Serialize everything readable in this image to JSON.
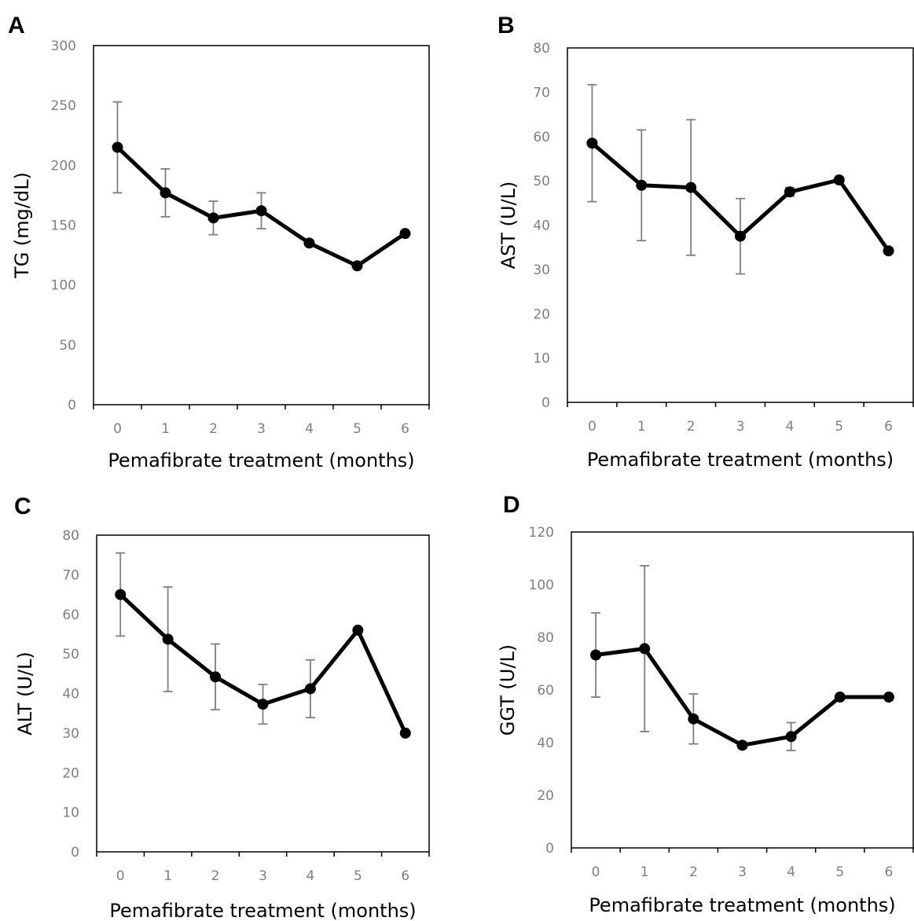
{
  "chart_data": [
    {
      "panel": "A",
      "type": "line",
      "xlabel": "Pemafibrate treatment (months)",
      "ylabel": "TG (mg/dL)",
      "ylim": [
        0,
        300
      ],
      "yticks": [
        "0",
        "50",
        "100",
        "150",
        "200",
        "250",
        "300"
      ],
      "categories": [
        "0",
        "1",
        "2",
        "3",
        "4",
        "5",
        "6"
      ],
      "values": [
        215,
        177,
        156,
        162,
        135,
        116,
        143
      ],
      "error": [
        38,
        20,
        14,
        15,
        null,
        null,
        null
      ],
      "grid": false
    },
    {
      "panel": "B",
      "type": "line",
      "xlabel": "Pemafibrate treatment (months)",
      "ylabel": "AST (U/L)",
      "ylim": [
        0,
        80
      ],
      "yticks": [
        "0",
        "10",
        "20",
        "30",
        "40",
        "50",
        "60",
        "70",
        "80"
      ],
      "categories": [
        "0",
        "1",
        "2",
        "3",
        "4",
        "5",
        "6"
      ],
      "values": [
        58.5,
        49,
        48.5,
        37.5,
        47.5,
        50.2,
        34.2
      ],
      "error": [
        13.2,
        12.5,
        15.3,
        8.5,
        1,
        null,
        null
      ],
      "grid": false
    },
    {
      "panel": "C",
      "type": "line",
      "xlabel": "Pemafibrate treatment (months)",
      "ylabel": "ALT (U/L)",
      "ylim": [
        0,
        80
      ],
      "yticks": [
        "0",
        "10",
        "20",
        "30",
        "40",
        "50",
        "60",
        "70",
        "80"
      ],
      "categories": [
        "0",
        "1",
        "2",
        "3",
        "4",
        "5",
        "6"
      ],
      "values": [
        65,
        53.7,
        44.2,
        37.3,
        41.2,
        56,
        30
      ],
      "error": [
        10.5,
        13.2,
        8.3,
        5,
        7.3,
        null,
        null
      ],
      "grid": false
    },
    {
      "panel": "D",
      "type": "line",
      "xlabel": "Pemafibrate treatment (months)",
      "ylabel": "GGT (U/L)",
      "ylim": [
        0,
        120
      ],
      "yticks": [
        "0",
        "20",
        "40",
        "60",
        "80",
        "100",
        "120"
      ],
      "categories": [
        "0",
        "1",
        "2",
        "3",
        "4",
        "5",
        "6"
      ],
      "values": [
        73.3,
        75.7,
        49,
        39,
        42.3,
        57.3,
        57.3
      ],
      "error": [
        16,
        31.5,
        9.5,
        1.2,
        5.3,
        null,
        null
      ],
      "grid": false
    }
  ]
}
